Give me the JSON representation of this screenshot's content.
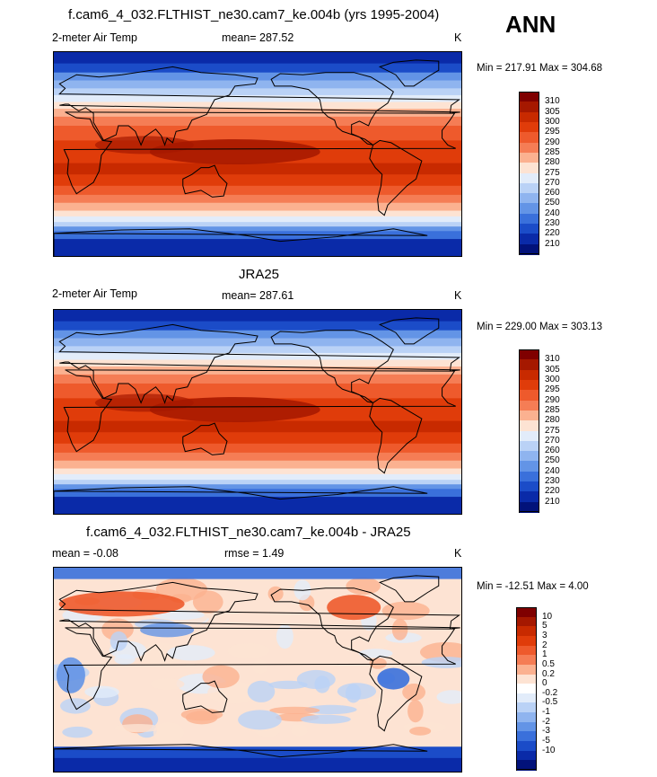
{
  "season": "ANN",
  "panels": [
    {
      "id": "model",
      "title": "f.cam6_4_032.FLTHIST_ne30.cam7_ke.004b (yrs 1995-2004)",
      "left_label": "2-meter Air Temp",
      "center_label": "mean= 287.52",
      "right_label": "K",
      "minmax": "Min = 217.91 Max = 304.68",
      "levels": [
        "310",
        "305",
        "300",
        "295",
        "290",
        "285",
        "280",
        "275",
        "270",
        "260",
        "250",
        "240",
        "230",
        "220",
        "210"
      ]
    },
    {
      "id": "obs",
      "title": "JRA25",
      "left_label": "2-meter Air Temp",
      "center_label": "mean= 287.61",
      "right_label": "K",
      "minmax": "Min = 229.00 Max = 303.13",
      "levels": [
        "310",
        "305",
        "300",
        "295",
        "290",
        "285",
        "280",
        "275",
        "270",
        "260",
        "250",
        "240",
        "230",
        "220",
        "210"
      ]
    },
    {
      "id": "diff",
      "title": "f.cam6_4_032.FLTHIST_ne30.cam7_ke.004b - JRA25",
      "left_label": "mean =  -0.08",
      "center_label": "rmse =   1.49",
      "right_label": "K",
      "minmax": "Min = -12.51 Max =   4.00",
      "levels": [
        "10",
        "5",
        "3",
        "2",
        "1",
        "0.5",
        "0.2",
        "0",
        "-0.2",
        "-0.5",
        "-1",
        "-2",
        "-3",
        "-5",
        "-10"
      ]
    }
  ],
  "colors": {
    "abs_scale": [
      "#7f0000",
      "#a51800",
      "#c82a00",
      "#e03c0a",
      "#ee5a2c",
      "#f57d55",
      "#fbb190",
      "#fde3d3",
      "#e2ecfa",
      "#bad2f6",
      "#8fb4ef",
      "#6394e6",
      "#3a70db",
      "#1b4cc8",
      "#0a2aa8",
      "#02127a"
    ],
    "diff_scale": [
      "#7f0000",
      "#a51800",
      "#c82a00",
      "#e03c0a",
      "#ee5a2c",
      "#f57d55",
      "#fbb190",
      "#fde3d3",
      "#ffffff",
      "#e2ecfa",
      "#bad2f6",
      "#8fb4ef",
      "#6394e6",
      "#3a70db",
      "#1b4cc8",
      "#0a2aa8",
      "#02127a"
    ]
  }
}
